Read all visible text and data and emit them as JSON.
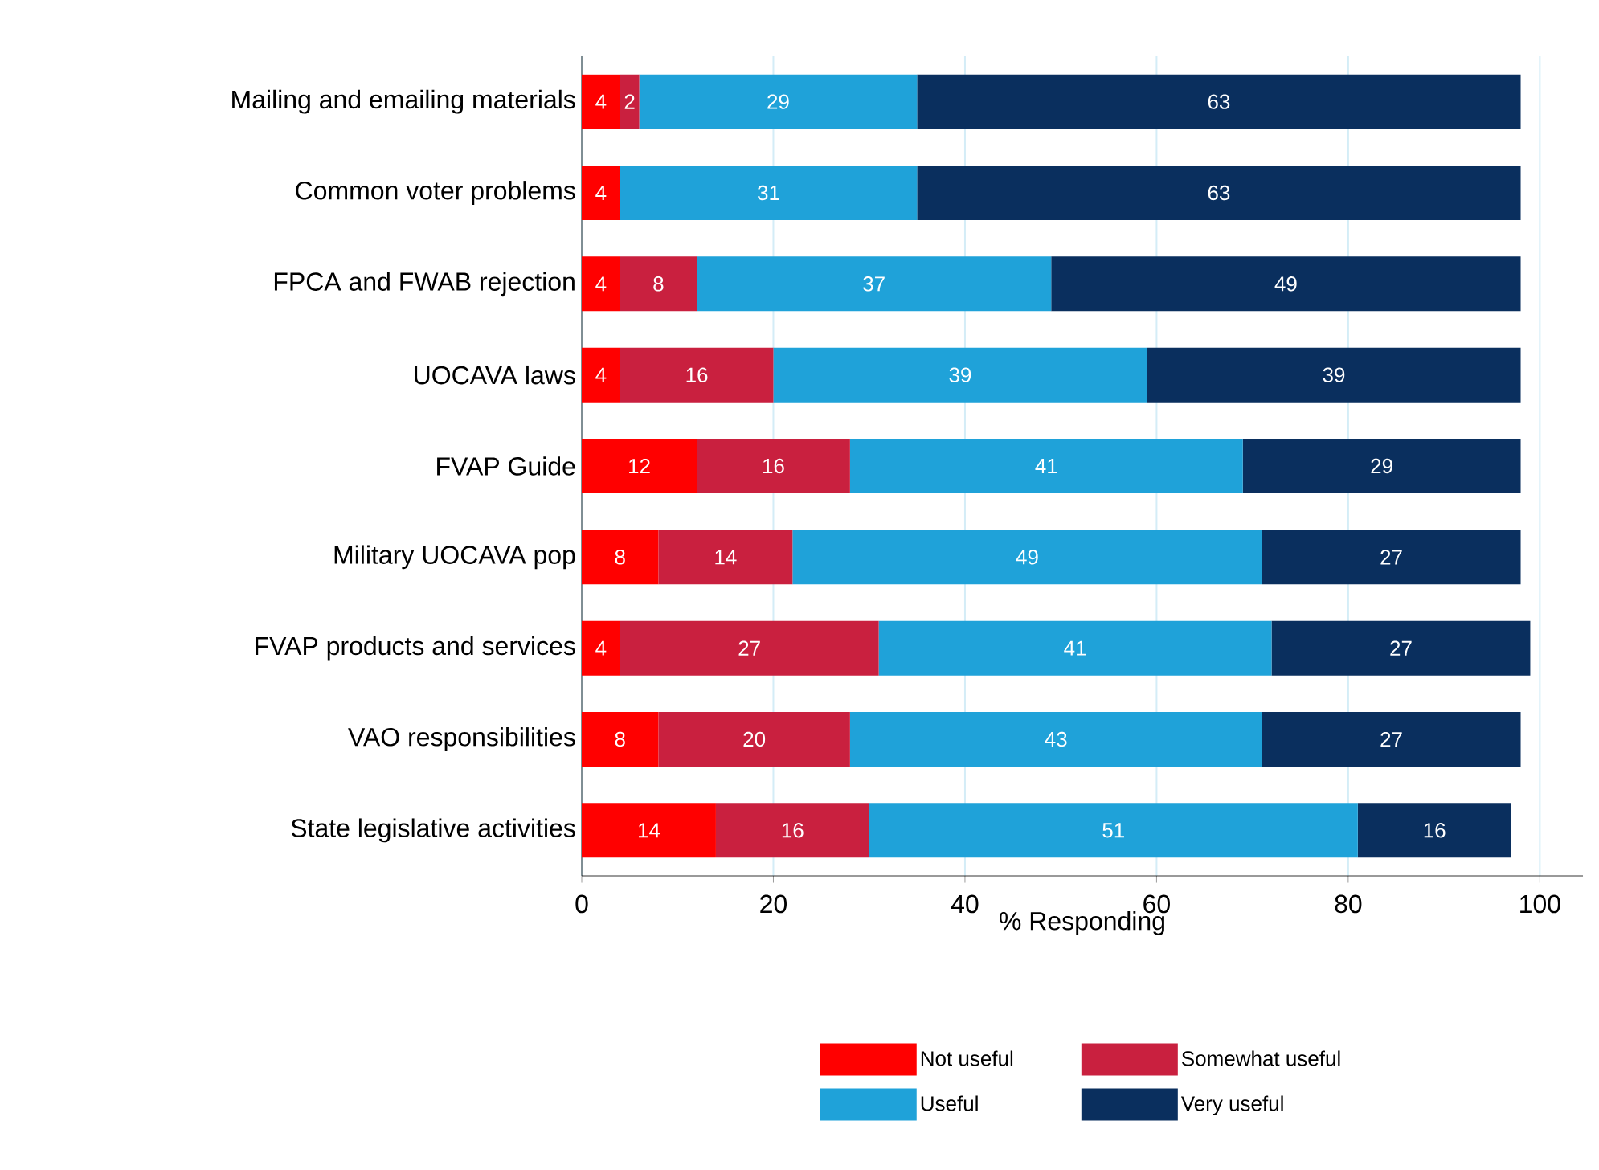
{
  "chart_data": {
    "type": "bar",
    "orientation": "horizontal",
    "stacked": true,
    "xlabel": "% Responding",
    "categories": [
      "Mailing and emailing materials",
      "Common voter problems",
      "FPCA and FWAB rejection",
      "UOCAVA laws",
      "FVAP Guide",
      "Military UOCAVA pop",
      "FVAP products and services",
      "VAO responsibilities",
      "State legislative activities"
    ],
    "series": [
      {
        "name": "Not useful",
        "color": "#ff0000",
        "values": [
          4,
          4,
          4,
          4,
          12,
          8,
          4,
          8,
          14
        ],
        "value_labels": [
          "4",
          "4",
          "4",
          "4",
          "12",
          "8",
          "4",
          "8",
          "14"
        ]
      },
      {
        "name": "Somewhat useful",
        "color": "#c9203f",
        "values": [
          2,
          0,
          8,
          16,
          16,
          14,
          27,
          20,
          16
        ],
        "value_labels": [
          "2",
          null,
          "8",
          "16",
          "16",
          "14",
          "27",
          "20",
          "16"
        ]
      },
      {
        "name": "Useful",
        "color": "#1fa2d9",
        "values": [
          29,
          31,
          37,
          39,
          41,
          49,
          41,
          43,
          51
        ],
        "value_labels": [
          "29",
          "31",
          "37",
          "39",
          "41",
          "49",
          "41",
          "43",
          "51"
        ]
      },
      {
        "name": "Very useful",
        "color": "#0a2f5e",
        "values": [
          63,
          63,
          49,
          39,
          29,
          27,
          27,
          27,
          16
        ],
        "value_labels": [
          "63",
          "63",
          "49",
          "39",
          "29",
          "27",
          "27",
          "27",
          "16"
        ]
      }
    ],
    "xlim": [
      0,
      104.5
    ],
    "xticks": [
      0,
      20,
      40,
      60,
      80,
      100
    ],
    "grid": "x",
    "legend": "bottom"
  }
}
